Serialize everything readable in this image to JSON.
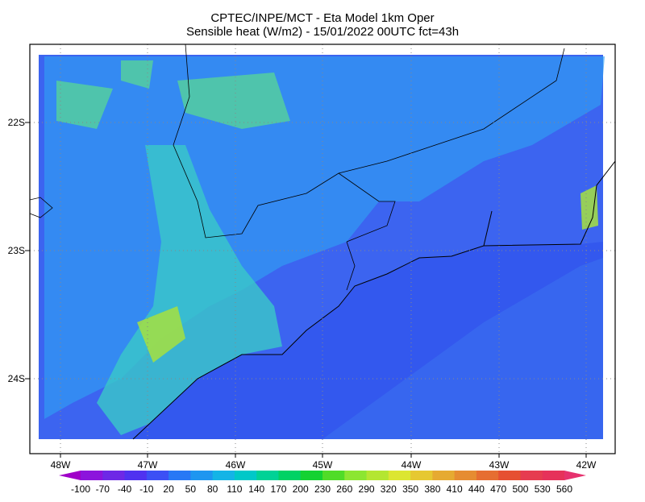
{
  "header": {
    "line1": "CPTEC/INPE/MCT -  Eta Model 1km Oper",
    "line2": "Sensible heat (W/m2) - 15/01/2022 00UTC fct=43h"
  },
  "map": {
    "lat_labels": [
      "22S",
      "23S",
      "24S"
    ],
    "lon_labels": [
      "48W",
      "47W",
      "46W",
      "45W",
      "44W",
      "43W",
      "42W"
    ]
  },
  "colorbar": {
    "labels": [
      -100,
      -70,
      -40,
      -10,
      20,
      50,
      80,
      110,
      140,
      170,
      200,
      230,
      260,
      290,
      320,
      350,
      380,
      410,
      440,
      470,
      500,
      530,
      560
    ],
    "colors": [
      "#a000c8",
      "#8c14dc",
      "#6e28e6",
      "#5032f0",
      "#3c50f5",
      "#2878f5",
      "#1e96f0",
      "#14b4e6",
      "#00c8c8",
      "#00d296",
      "#00d264",
      "#14d232",
      "#50dc28",
      "#8ce632",
      "#b4e632",
      "#dce632",
      "#e6c832",
      "#e6aa32",
      "#e68c32",
      "#e66e32",
      "#e65032",
      "#e63c50",
      "#e6325a",
      "#e6326e"
    ]
  }
}
